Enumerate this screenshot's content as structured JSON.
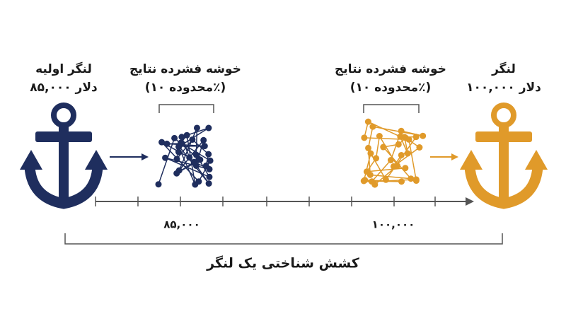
{
  "left_anchor": {
    "title": "لنگر اولیه",
    "amount": "۸۵,۰۰۰ دلار"
  },
  "left_cluster": {
    "title": "خوشه فشرده نتایج",
    "range": "(محدوده ۱۰٪)"
  },
  "right_cluster": {
    "title": "خوشه فشرده نتایج",
    "range": "(محدوده ۱۰٪)"
  },
  "right_anchor": {
    "title": "لنگر",
    "amount": "۱۰۰,۰۰۰ دلار"
  },
  "axis": {
    "labels": [
      "۸۵,۰۰۰",
      "۱۰۰,۰۰۰"
    ]
  },
  "caption": "کشش شناختی یک لنگر"
}
